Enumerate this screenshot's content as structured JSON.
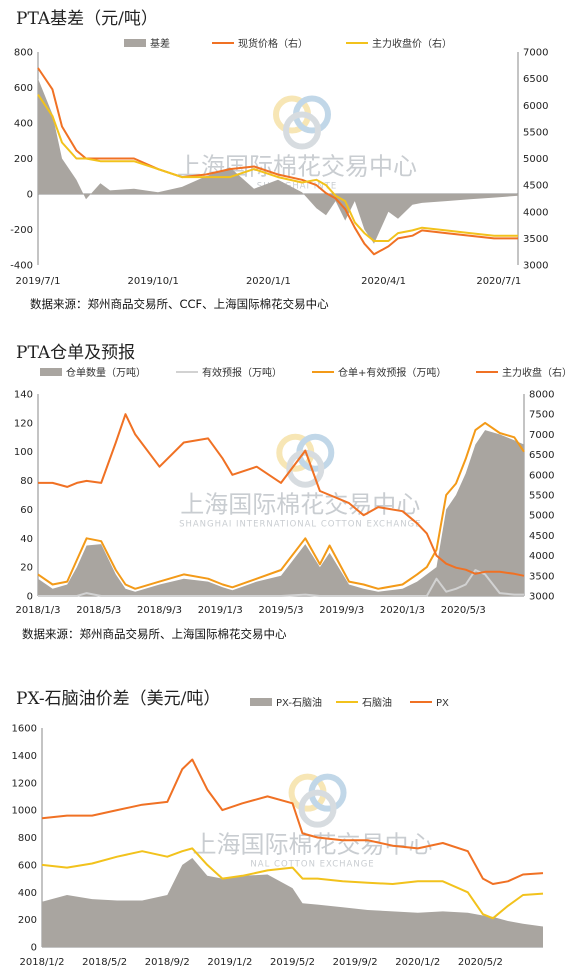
{
  "colors": {
    "area": "#a9a5a0",
    "orange": "#f07124",
    "yellow": "#f2c21c",
    "lightgray": "#d2d2d2",
    "watermark": "#c9cdd1"
  },
  "watermark": {
    "cn": "上海国际棉花交易中心",
    "en": "SHANGHAI INTERNATIONAL COTTON EXCHANGE",
    "en_short_1": "SHANGHAI  INTE",
    "en_short_2": "NAL COTTON EXCHANGE"
  },
  "charts": [
    {
      "title": "PTA基差（元/吨）",
      "source": "数据来源：郑州商品交易所、CCF、上海国际棉花交易中心",
      "legend": [
        "基差",
        "现货价格（右）",
        "主力收盘价（右）"
      ]
    },
    {
      "title": "PTA仓单及预报",
      "source": "数据来源：郑州商品交易所、上海国际棉花交易中心",
      "legend": [
        "仓单数量（万吨）",
        "有效预报（万吨）",
        "仓单+有效预报（万吨）",
        "主力收盘（右）"
      ]
    },
    {
      "title": "PX-石脑油价差（美元/吨）",
      "source": "",
      "legend": [
        "PX-石脑油",
        "石脑油",
        "PX"
      ]
    }
  ],
  "chart_data": [
    {
      "type": "area",
      "title": "PTA基差（元/吨）",
      "x_ticks": [
        "2019/7/1",
        "2019/10/1",
        "2020/1/1",
        "2020/4/1",
        "2020/7/1"
      ],
      "x": [
        0,
        0.03,
        0.05,
        0.08,
        0.1,
        0.13,
        0.15,
        0.2,
        0.25,
        0.3,
        0.35,
        0.4,
        0.45,
        0.5,
        0.55,
        0.58,
        0.6,
        0.62,
        0.64,
        0.66,
        0.68,
        0.7,
        0.73,
        0.75,
        0.78,
        0.8,
        0.85,
        0.9,
        0.95,
        1
      ],
      "ylim_left": [
        -400,
        800
      ],
      "ylim_right": [
        3000,
        7000
      ],
      "y_ticks_left": [
        -400,
        -200,
        0,
        200,
        400,
        600,
        800
      ],
      "y_ticks_right": [
        3000,
        3500,
        4000,
        4500,
        5000,
        5500,
        6000,
        6500,
        7000
      ],
      "series": [
        {
          "name": "基差",
          "axis": "left",
          "values": [
            650,
            450,
            200,
            80,
            -30,
            60,
            20,
            30,
            10,
            40,
            100,
            150,
            30,
            80,
            10,
            -80,
            -120,
            -40,
            -150,
            -40,
            -200,
            -280,
            -100,
            -140,
            -60,
            -50,
            -40,
            -30,
            -20,
            -10
          ]
        },
        {
          "name": "现货价格（右）",
          "axis": "right",
          "values": [
            6700,
            6300,
            5600,
            5150,
            5000,
            5000,
            5000,
            5000,
            4800,
            4650,
            4700,
            4800,
            4850,
            4700,
            4600,
            4500,
            4350,
            4250,
            4050,
            3700,
            3400,
            3200,
            3350,
            3500,
            3550,
            3650,
            3600,
            3550,
            3500,
            3500
          ]
        },
        {
          "name": "主力收盘价（右）",
          "axis": "right",
          "values": [
            6200,
            5800,
            5300,
            5000,
            5000,
            4950,
            4950,
            4950,
            4800,
            4650,
            4650,
            4650,
            4800,
            4650,
            4550,
            4600,
            4500,
            4300,
            4200,
            3800,
            3600,
            3450,
            3450,
            3600,
            3650,
            3700,
            3650,
            3600,
            3550,
            3550
          ]
        }
      ]
    },
    {
      "type": "area",
      "title": "PTA仓单及预报",
      "x_ticks": [
        "2018/1/3",
        "2018/5/3",
        "2018/9/3",
        "2019/1/3",
        "2019/5/3",
        "2019/9/3",
        "2020/1/3",
        "2020/5/3"
      ],
      "x": [
        0,
        0.03,
        0.06,
        0.08,
        0.1,
        0.13,
        0.16,
        0.18,
        0.2,
        0.25,
        0.3,
        0.35,
        0.38,
        0.4,
        0.45,
        0.5,
        0.55,
        0.58,
        0.6,
        0.64,
        0.67,
        0.7,
        0.75,
        0.78,
        0.8,
        0.82,
        0.84,
        0.86,
        0.88,
        0.9,
        0.92,
        0.95,
        0.98,
        1
      ],
      "ylim_left": [
        0,
        140
      ],
      "ylim_right": [
        3000,
        8000
      ],
      "y_ticks_left": [
        0,
        20,
        40,
        60,
        80,
        100,
        120,
        140
      ],
      "y_ticks_right": [
        3000,
        3500,
        4000,
        4500,
        5000,
        5500,
        6000,
        6500,
        7000,
        7500,
        8000
      ],
      "series": [
        {
          "name": "仓单数量（万吨）",
          "axis": "left",
          "values": [
            12,
            5,
            8,
            20,
            35,
            36,
            15,
            5,
            3,
            8,
            12,
            10,
            6,
            4,
            10,
            14,
            36,
            20,
            30,
            8,
            5,
            3,
            5,
            10,
            15,
            20,
            60,
            70,
            85,
            105,
            115,
            112,
            108,
            105
          ]
        },
        {
          "name": "有效预报（万吨）",
          "axis": "left",
          "values": [
            0,
            0,
            0,
            0,
            2,
            0,
            0,
            0,
            0,
            0,
            0,
            0,
            0,
            0,
            0,
            0,
            1,
            0,
            0,
            0,
            0,
            0,
            0,
            0,
            0,
            12,
            3,
            5,
            8,
            18,
            15,
            2,
            1,
            1
          ]
        },
        {
          "name": "仓单+有效预报（万吨）",
          "axis": "left",
          "values": [
            15,
            8,
            10,
            25,
            40,
            38,
            18,
            8,
            5,
            10,
            15,
            12,
            8,
            6,
            12,
            18,
            40,
            22,
            35,
            10,
            8,
            5,
            8,
            15,
            20,
            32,
            70,
            78,
            95,
            115,
            120,
            113,
            110,
            100
          ]
        },
        {
          "name": "主力收盘（右）",
          "axis": "right",
          "values": [
            5800,
            5800,
            5700,
            5800,
            5850,
            5800,
            6800,
            7500,
            7000,
            6200,
            6800,
            6900,
            6400,
            6000,
            6200,
            5800,
            6600,
            5600,
            5500,
            5300,
            5000,
            5200,
            5100,
            4800,
            4550,
            4000,
            3800,
            3700,
            3650,
            3550,
            3600,
            3600,
            3550,
            3500
          ]
        }
      ]
    },
    {
      "type": "area",
      "title": "PX-石脑油价差（美元/吨）",
      "x_ticks": [
        "2018/1/2",
        "2018/5/2",
        "2018/9/2",
        "2019/1/2",
        "2019/5/2",
        "2019/9/2",
        "2020/1/2",
        "2020/5/2"
      ],
      "x": [
        0,
        0.05,
        0.1,
        0.15,
        0.2,
        0.25,
        0.28,
        0.3,
        0.33,
        0.36,
        0.4,
        0.45,
        0.5,
        0.52,
        0.55,
        0.6,
        0.65,
        0.7,
        0.75,
        0.8,
        0.85,
        0.88,
        0.9,
        0.93,
        0.96,
        1
      ],
      "ylim": [
        0,
        1600
      ],
      "y_ticks": [
        0,
        200,
        400,
        600,
        800,
        1000,
        1200,
        1400,
        1600
      ],
      "series": [
        {
          "name": "PX-石脑油",
          "axis": "left",
          "values": [
            330,
            380,
            350,
            340,
            340,
            380,
            600,
            650,
            520,
            500,
            520,
            530,
            430,
            320,
            310,
            290,
            270,
            260,
            250,
            260,
            250,
            230,
            220,
            190,
            170,
            150
          ]
        },
        {
          "name": "石脑油",
          "axis": "left",
          "values": [
            600,
            580,
            610,
            660,
            700,
            660,
            700,
            720,
            600,
            500,
            520,
            560,
            580,
            500,
            500,
            480,
            470,
            460,
            480,
            480,
            400,
            240,
            210,
            300,
            380,
            390
          ]
        },
        {
          "name": "PX",
          "axis": "left",
          "values": [
            940,
            960,
            960,
            1000,
            1040,
            1060,
            1300,
            1370,
            1150,
            1000,
            1050,
            1100,
            1050,
            830,
            800,
            780,
            780,
            740,
            720,
            760,
            700,
            500,
            460,
            480,
            530,
            540
          ]
        }
      ]
    }
  ]
}
